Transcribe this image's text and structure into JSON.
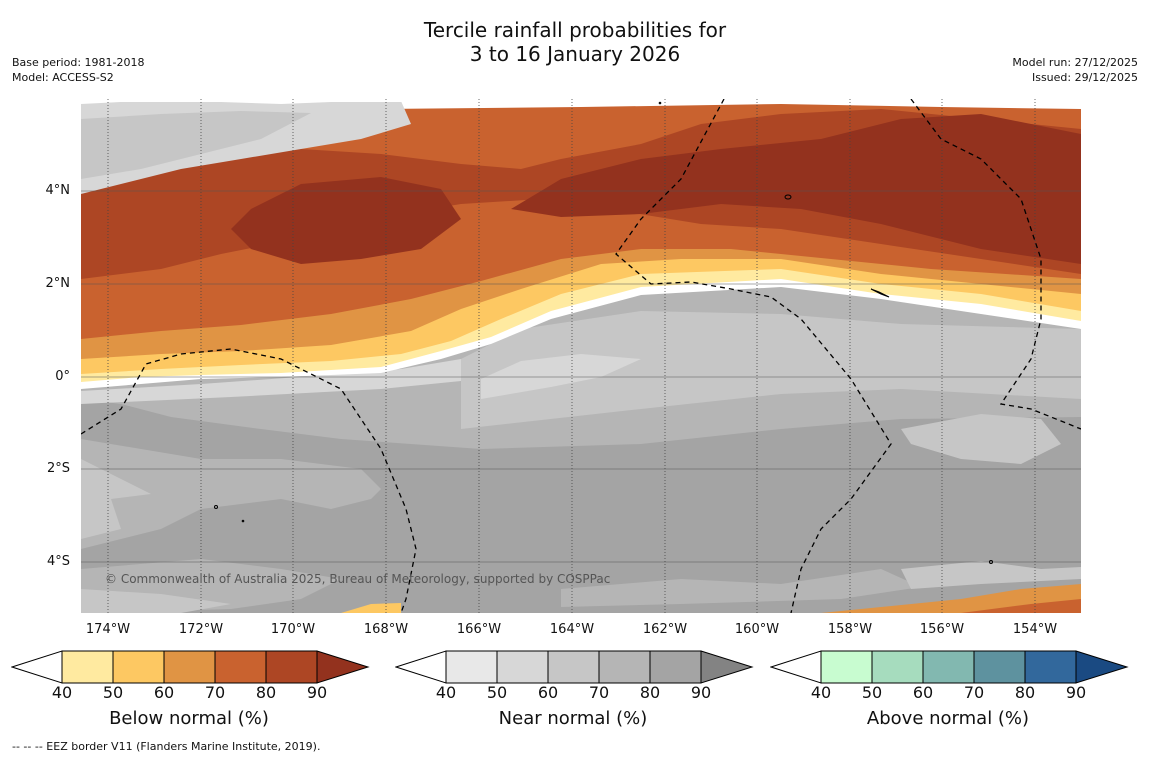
{
  "title": {
    "line1": "Tercile rainfall probabilities for",
    "line2": "3 to 16 January 2026"
  },
  "meta_left": {
    "base_period": "Base period: 1981-2018",
    "model": "Model: ACCESS-S2"
  },
  "meta_right": {
    "model_run": "Model run: 27/12/2025",
    "issued": "Issued: 29/12/2025"
  },
  "map": {
    "copyright": "© Commonwealth of Australia 2025, Bureau of Meteorology, supported by COSPPac",
    "lat_labels": [
      "4°N",
      "2°N",
      "0°",
      "2°S",
      "4°S"
    ],
    "lon_labels": [
      "174°W",
      "172°W",
      "170°W",
      "168°W",
      "166°W",
      "164°W",
      "162°W",
      "160°W",
      "158°W",
      "156°W",
      "154°W"
    ]
  },
  "colors": {
    "below": [
      "#ffeaa0",
      "#fdc862",
      "#e09444",
      "#c9622f",
      "#ad4624",
      "#93321e"
    ],
    "near": [
      "#e8e8e8",
      "#d7d7d7",
      "#c6c6c6",
      "#b5b5b5",
      "#a4a4a4",
      "#838383"
    ],
    "above": [
      "#c8fcd0",
      "#a6dcbe",
      "#82b8b0",
      "#5e929f",
      "#32689c",
      "#1a4a82"
    ]
  },
  "colorbars": [
    {
      "title": "Below normal (%)",
      "ticks": [
        "40",
        "50",
        "60",
        "70",
        "80",
        "90"
      ]
    },
    {
      "title": "Near normal (%)",
      "ticks": [
        "40",
        "50",
        "60",
        "70",
        "80",
        "90"
      ]
    },
    {
      "title": "Above normal (%)",
      "ticks": [
        "40",
        "50",
        "60",
        "70",
        "80",
        "90"
      ]
    }
  ],
  "footer": "--  --  -- EEZ border V11 (Flanders Marine Institute, 2019)."
}
